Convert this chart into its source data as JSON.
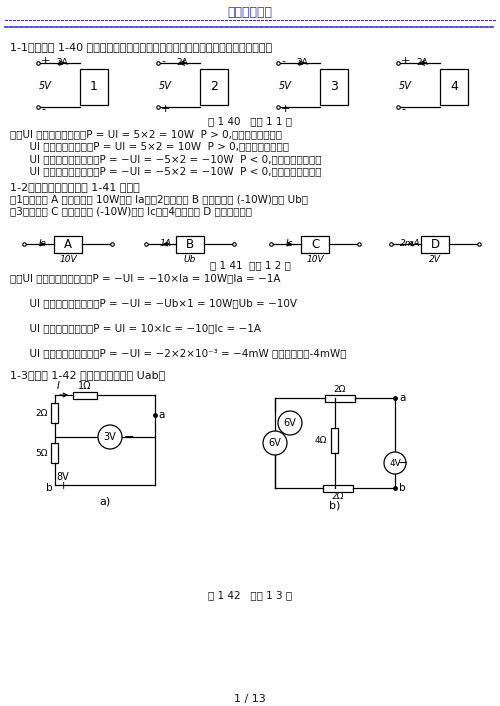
{
  "figsize": [
    5.0,
    7.06
  ],
  "dpi": 100,
  "bg": "#ffffff",
  "blue": "#3333bb",
  "black": "#111111",
  "header": "最新资料推荐",
  "q1": "1-1、根据图 1-40 示参考方向，判断元件是吸收还是发出功率，其功率各为多少？",
  "fig140_cap": "图 1 40   习题 1 1 图",
  "sol1": [
    "解：UI 为关联参考方向，P = UI = 5×2 = 10W  P > 0,吸收功率，负载性",
    "      UI 为关联参考方向，P = UI = 5×2 = 10W  P > 0,吸收功率，负载性",
    "      UI 为非关联参考方向，P = −UI = −5×2 = −10W  P < 0,发出功率，电源性",
    "      UI 为非关联参考方向，P = −UI = −5×2 = −10W  P < 0,发出功率，电源性"
  ],
  "q2": "1-2、各元件的条件如图 1-41 所示：",
  "q2a": "（1）若元件 A 吸收功率为 10W，求 Ia；（2）若元件 B 产生功率为 (-10W)，求 Ub；",
  "q2b": "（3）若元件 C 吸收功率为 (-10W)，求 Ic；（4）求元件 D 吸收的功率。",
  "fig141_cap": "图 1 41  习题 1 2 图",
  "sol2": [
    "解：UI 为非关联参考方向，P = −UI = −10×Ia = 10W，Ia = −1A",
    "",
    "      UI 为非关联参考方向，P = −UI = −Ub×1 = 10W，Ub = −10V",
    "",
    "      UI 为关联参考方向，P = UI = 10×Ic = −10，Ic = −1A",
    "",
    "      UI 为非关联参考方向，P = −UI = −2×2×10⁻³ = −4mW 吸收的功率是-4mW。"
  ],
  "q3": "1-3、求图 1-42 所示电路中的电压 Uab。",
  "fig142_cap": "图 1 42   习题 1 3 图",
  "page": "1 / 13"
}
